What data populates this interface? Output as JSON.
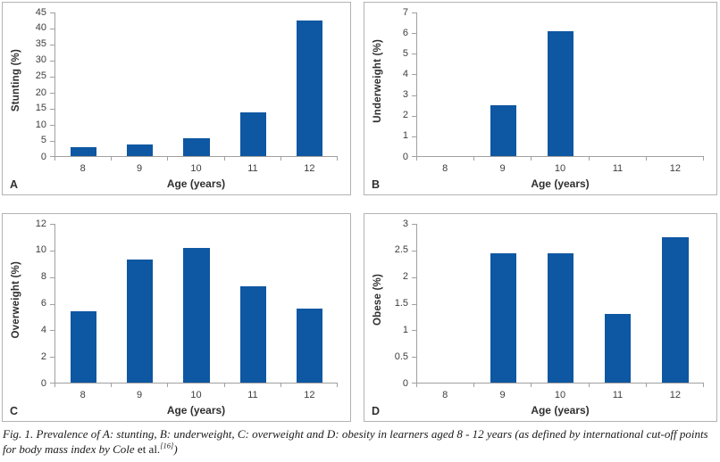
{
  "figure": {
    "caption": {
      "part1": "Fig. 1. Prevalence of A: stunting, B: underweight, C: overweight and D: obesity in learners aged 8 - 12 years (as defined by international cut-off points for body mass index by Cole ",
      "etal": "et al.",
      "ref_sup": "[16]",
      "part2": ")"
    }
  },
  "colors": {
    "bar": "#0E57A2",
    "axis": "#a0a0a0",
    "panel_border": "#b3b3b3",
    "text": "#3d3d3d"
  },
  "chart_data": [
    {
      "type": "bar",
      "panel": "A",
      "title": "",
      "ylabel": "Stunting (%)",
      "xlabel": "Age (years)",
      "categories": [
        "8",
        "9",
        "10",
        "11",
        "12"
      ],
      "values": [
        2.9,
        3.7,
        5.5,
        13.6,
        42.5
      ],
      "ylim": [
        0,
        45
      ],
      "yticks": [
        "45",
        "40",
        "35",
        "30",
        "25",
        "20",
        "15",
        "10",
        "5",
        "0"
      ],
      "grid": false,
      "legend": "none"
    },
    {
      "type": "bar",
      "panel": "B",
      "title": "",
      "ylabel": "Underweight (%)",
      "xlabel": "Age (years)",
      "categories": [
        "8",
        "9",
        "10",
        "11",
        "12"
      ],
      "values": [
        0,
        2.5,
        6.1,
        0,
        0
      ],
      "ylim": [
        0,
        7
      ],
      "yticks": [
        "7",
        "6",
        "5",
        "4",
        "3",
        "2",
        "1",
        "0"
      ],
      "grid": false,
      "legend": "none"
    },
    {
      "type": "bar",
      "panel": "C",
      "title": "",
      "ylabel": "Overweight (%)",
      "xlabel": "Age (years)",
      "categories": [
        "8",
        "9",
        "10",
        "11",
        "12"
      ],
      "values": [
        5.4,
        9.3,
        10.2,
        7.3,
        5.6
      ],
      "ylim": [
        0,
        12
      ],
      "yticks": [
        "12",
        "10",
        "8",
        "6",
        "4",
        "2",
        "0"
      ],
      "grid": false,
      "legend": "none"
    },
    {
      "type": "bar",
      "panel": "D",
      "title": "",
      "ylabel": "Obese (%)",
      "xlabel": "Age (years)",
      "categories": [
        "8",
        "9",
        "10",
        "11",
        "12"
      ],
      "values": [
        0,
        2.45,
        2.45,
        1.3,
        2.75
      ],
      "ylim": [
        0,
        3
      ],
      "yticks": [
        "3",
        "2.5",
        "2",
        "1.5",
        "1",
        "0.5",
        "0"
      ],
      "grid": false,
      "legend": "none"
    }
  ]
}
